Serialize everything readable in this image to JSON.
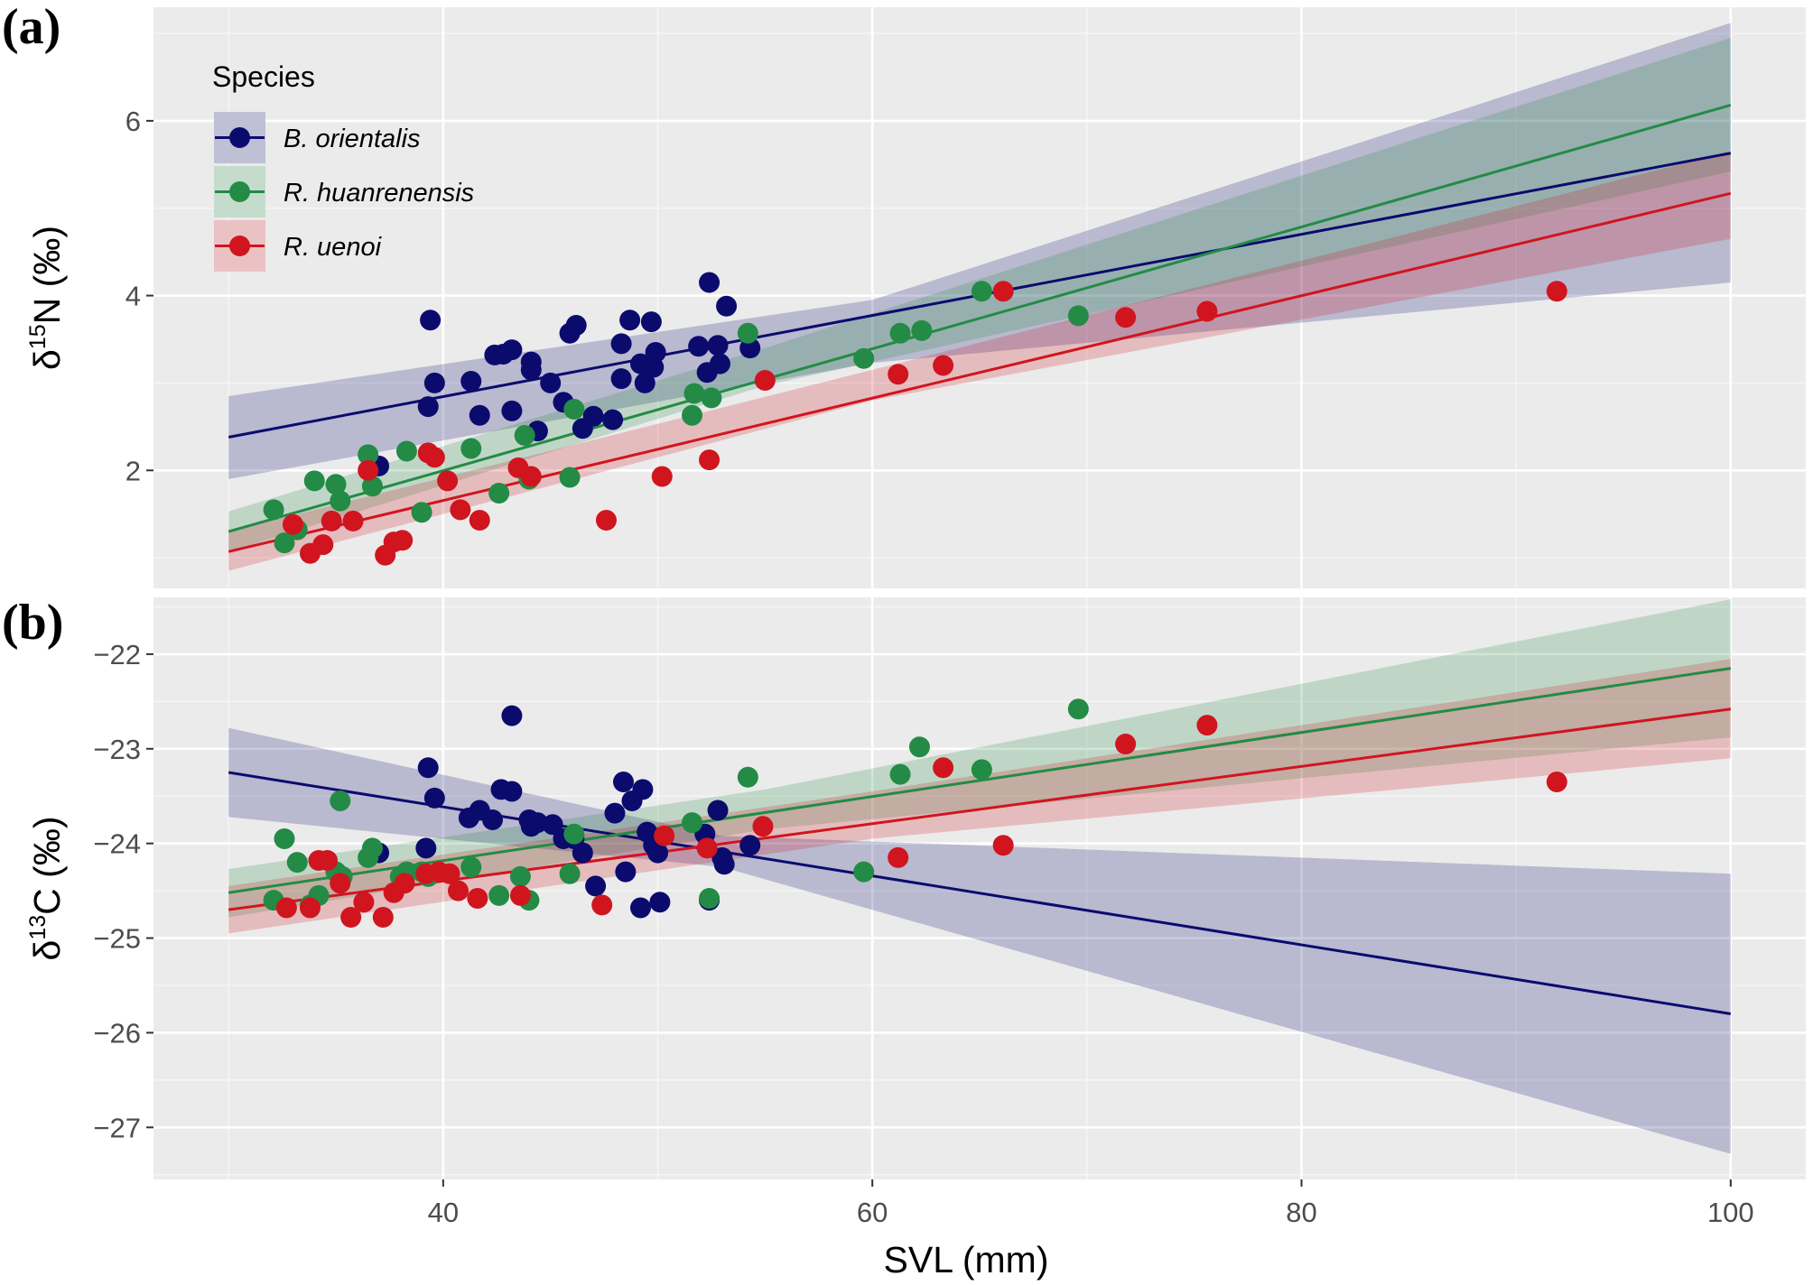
{
  "chart_data": {
    "type": "scatter",
    "legend": {
      "title": "Species",
      "position": "top-left",
      "items": [
        {
          "label": "B. orientalis",
          "color": "#0b0b6e"
        },
        {
          "label": "R. huanrenensis",
          "color": "#238b45"
        },
        {
          "label": "R. uenoi",
          "color": "#d0151f"
        }
      ]
    },
    "x_axis": {
      "label": "SVL (mm)",
      "range": [
        26.5,
        103.5
      ],
      "ticks": [
        40,
        60,
        80,
        100
      ],
      "tick_labels": [
        "40",
        "60",
        "80",
        "100"
      ]
    },
    "panels": [
      {
        "letter": "(a)",
        "ylabel_prefix": "δ",
        "ylabel_sup": "15",
        "ylabel_suffix": "N (‰)",
        "y_range": [
          0.65,
          7.3
        ],
        "ticks": [
          2,
          4,
          6
        ],
        "tick_labels": [
          "2",
          "4",
          "6"
        ],
        "series": [
          {
            "name": "B. orientalis",
            "fit": {
              "x": [
                30,
                100
              ],
              "y": [
                2.38,
                5.63
              ]
            },
            "ci": {
              "x": [
                30,
                60,
                100
              ],
              "lower": [
                1.9,
                3.23,
                4.15
              ],
              "upper": [
                2.85,
                3.95,
                7.12
              ]
            },
            "points": [
              [
                37,
                2.05
              ],
              [
                39.3,
                2.73
              ],
              [
                39.4,
                3.72
              ],
              [
                39.6,
                3.0
              ],
              [
                41.3,
                3.02
              ],
              [
                41.7,
                2.63
              ],
              [
                42.4,
                3.32
              ],
              [
                42.8,
                3.33
              ],
              [
                43.2,
                3.38
              ],
              [
                43.2,
                2.68
              ],
              [
                44.1,
                3.24
              ],
              [
                44.1,
                3.15
              ],
              [
                44.4,
                2.45
              ],
              [
                45,
                3.0
              ],
              [
                45.6,
                2.78
              ],
              [
                45.9,
                3.57
              ],
              [
                46.2,
                3.66
              ],
              [
                46.5,
                2.48
              ],
              [
                47,
                2.62
              ],
              [
                47.9,
                2.58
              ],
              [
                48.3,
                3.05
              ],
              [
                48.3,
                3.45
              ],
              [
                48.7,
                3.72
              ],
              [
                49.2,
                3.22
              ],
              [
                49.4,
                3.0
              ],
              [
                49.7,
                3.7
              ],
              [
                49.8,
                3.18
              ],
              [
                49.9,
                3.35
              ],
              [
                51.9,
                3.42
              ],
              [
                52.3,
                3.12
              ],
              [
                52.4,
                4.15
              ],
              [
                52.8,
                3.43
              ],
              [
                52.9,
                3.22
              ],
              [
                53.2,
                3.88
              ],
              [
                54.3,
                3.4
              ]
            ]
          },
          {
            "name": "R. huanrenensis",
            "fit": {
              "x": [
                30,
                100
              ],
              "y": [
                1.3,
                6.18
              ]
            },
            "ci": {
              "x": [
                30,
                55,
                100
              ],
              "lower": [
                1.07,
                2.97,
                5.42
              ],
              "upper": [
                1.53,
                3.4,
                6.95
              ]
            },
            "points": [
              [
                32.1,
                1.55
              ],
              [
                32.6,
                1.17
              ],
              [
                33.2,
                1.32
              ],
              [
                34,
                1.88
              ],
              [
                35,
                1.84
              ],
              [
                35.2,
                1.65
              ],
              [
                36.5,
                2.18
              ],
              [
                36.7,
                1.82
              ],
              [
                38.3,
                2.22
              ],
              [
                39,
                1.52
              ],
              [
                41.3,
                2.25
              ],
              [
                42.6,
                1.74
              ],
              [
                43.8,
                2.4
              ],
              [
                44,
                1.9
              ],
              [
                45.9,
                1.92
              ],
              [
                46.1,
                2.7
              ],
              [
                51.6,
                2.63
              ],
              [
                51.7,
                2.88
              ],
              [
                52.5,
                2.83
              ],
              [
                54.2,
                3.57
              ],
              [
                59.6,
                3.28
              ],
              [
                61.3,
                3.57
              ],
              [
                62.3,
                3.6
              ],
              [
                65.1,
                4.05
              ],
              [
                69.6,
                3.77
              ]
            ]
          },
          {
            "name": "R. uenoi",
            "fit": {
              "x": [
                30,
                100
              ],
              "y": [
                1.07,
                5.17
              ]
            },
            "ci": {
              "x": [
                30,
                60,
                100
              ],
              "lower": [
                0.85,
                2.8,
                4.65
              ],
              "upper": [
                1.3,
                3.15,
                5.65
              ]
            },
            "points": [
              [
                33,
                1.38
              ],
              [
                33.8,
                1.05
              ],
              [
                34.4,
                1.15
              ],
              [
                34.8,
                1.42
              ],
              [
                35.8,
                1.42
              ],
              [
                36.5,
                2.0
              ],
              [
                37.3,
                1.03
              ],
              [
                37.7,
                1.18
              ],
              [
                38.1,
                1.2
              ],
              [
                39.3,
                2.2
              ],
              [
                39.6,
                2.15
              ],
              [
                40.2,
                1.88
              ],
              [
                40.8,
                1.55
              ],
              [
                41.7,
                1.43
              ],
              [
                43.5,
                2.03
              ],
              [
                44.1,
                1.93
              ],
              [
                47.6,
                1.43
              ],
              [
                50.2,
                1.93
              ],
              [
                52.4,
                2.12
              ],
              [
                55,
                3.03
              ],
              [
                61.2,
                3.1
              ],
              [
                63.3,
                3.2
              ],
              [
                66.1,
                4.05
              ],
              [
                71.8,
                3.75
              ],
              [
                75.6,
                3.82
              ],
              [
                91.9,
                4.05
              ]
            ]
          }
        ]
      },
      {
        "letter": "(b)",
        "ylabel_prefix": "δ",
        "ylabel_sup": "13",
        "ylabel_suffix": "C (‰)",
        "y_range": [
          -27.55,
          -21.4
        ],
        "ticks": [
          -22,
          -23,
          -24,
          -25,
          -26,
          -27
        ],
        "tick_labels": [
          "−22",
          "−23",
          "−24",
          "−25",
          "−26",
          "−27"
        ],
        "series": [
          {
            "name": "B. orientalis",
            "fit": {
              "x": [
                30,
                100
              ],
              "y": [
                -23.25,
                -25.8
              ]
            },
            "ci": {
              "x": [
                30,
                53,
                100
              ],
              "lower": [
                -23.72,
                -24.25,
                -27.28
              ],
              "upper": [
                -22.78,
                -23.92,
                -24.32
              ]
            },
            "points": [
              [
                37,
                -24.1
              ],
              [
                39.2,
                -24.05
              ],
              [
                39.3,
                -23.2
              ],
              [
                39.6,
                -23.52
              ],
              [
                41.2,
                -23.73
              ],
              [
                41.7,
                -23.65
              ],
              [
                42.3,
                -23.75
              ],
              [
                42.7,
                -23.43
              ],
              [
                43.2,
                -23.45
              ],
              [
                43.2,
                -22.65
              ],
              [
                44,
                -23.75
              ],
              [
                44.1,
                -23.82
              ],
              [
                44.4,
                -23.78
              ],
              [
                45.1,
                -23.8
              ],
              [
                45.6,
                -23.95
              ],
              [
                46.1,
                -23.95
              ],
              [
                46.5,
                -24.1
              ],
              [
                47.1,
                -24.45
              ],
              [
                48,
                -23.68
              ],
              [
                48.4,
                -23.35
              ],
              [
                48.5,
                -24.3
              ],
              [
                48.8,
                -23.55
              ],
              [
                49.2,
                -24.68
              ],
              [
                49.3,
                -23.43
              ],
              [
                49.5,
                -23.88
              ],
              [
                49.8,
                -24.02
              ],
              [
                50,
                -24.1
              ],
              [
                50.1,
                -24.62
              ],
              [
                52.2,
                -23.9
              ],
              [
                52.4,
                -24.6
              ],
              [
                52.8,
                -23.65
              ],
              [
                53,
                -24.15
              ],
              [
                53.1,
                -24.22
              ],
              [
                54.3,
                -24.02
              ]
            ]
          },
          {
            "name": "R. huanrenensis",
            "fit": {
              "x": [
                30,
                100
              ],
              "y": [
                -24.52,
                -22.15
              ]
            },
            "ci": {
              "x": [
                30,
                55,
                100
              ],
              "lower": [
                -24.78,
                -23.85,
                -22.88
              ],
              "upper": [
                -24.27,
                -23.43,
                -21.42
              ]
            },
            "points": [
              [
                32.1,
                -24.6
              ],
              [
                32.6,
                -23.95
              ],
              [
                33.2,
                -24.2
              ],
              [
                33.8,
                -24.65
              ],
              [
                34.2,
                -24.55
              ],
              [
                35,
                -24.3
              ],
              [
                35.2,
                -23.55
              ],
              [
                35.3,
                -24.35
              ],
              [
                36.5,
                -24.15
              ],
              [
                36.7,
                -24.05
              ],
              [
                38,
                -24.35
              ],
              [
                38.3,
                -24.3
              ],
              [
                39,
                -24.3
              ],
              [
                39.3,
                -24.35
              ],
              [
                41.3,
                -24.25
              ],
              [
                42.6,
                -24.55
              ],
              [
                43.6,
                -24.35
              ],
              [
                44,
                -24.6
              ],
              [
                45.9,
                -24.32
              ],
              [
                46.1,
                -23.9
              ],
              [
                51.6,
                -23.78
              ],
              [
                52.4,
                -24.58
              ],
              [
                54.2,
                -23.3
              ],
              [
                59.6,
                -24.3
              ],
              [
                61.3,
                -23.27
              ],
              [
                62.2,
                -22.98
              ],
              [
                65.1,
                -23.22
              ],
              [
                69.6,
                -22.58
              ]
            ]
          },
          {
            "name": "R. uenoi",
            "fit": {
              "x": [
                30,
                100
              ],
              "y": [
                -24.7,
                -22.58
              ]
            },
            "ci": {
              "x": [
                30,
                60,
                100
              ],
              "lower": [
                -24.95,
                -23.95,
                -23.1
              ],
              "upper": [
                -24.45,
                -23.45,
                -22.05
              ]
            },
            "points": [
              [
                32.7,
                -24.68
              ],
              [
                33.8,
                -24.68
              ],
              [
                34.2,
                -24.18
              ],
              [
                34.6,
                -24.18
              ],
              [
                35.2,
                -24.42
              ],
              [
                35.7,
                -24.78
              ],
              [
                36.3,
                -24.62
              ],
              [
                37.2,
                -24.78
              ],
              [
                37.7,
                -24.52
              ],
              [
                38.2,
                -24.42
              ],
              [
                39.2,
                -24.32
              ],
              [
                39.8,
                -24.3
              ],
              [
                40.3,
                -24.32
              ],
              [
                40.7,
                -24.5
              ],
              [
                41.6,
                -24.58
              ],
              [
                43.6,
                -24.55
              ],
              [
                47.4,
                -24.65
              ],
              [
                50.3,
                -23.92
              ],
              [
                52.3,
                -24.05
              ],
              [
                54.9,
                -23.82
              ],
              [
                61.2,
                -24.15
              ],
              [
                63.3,
                -23.2
              ],
              [
                66.1,
                -24.02
              ],
              [
                71.8,
                -22.95
              ],
              [
                75.6,
                -22.75
              ],
              [
                91.9,
                -23.35
              ]
            ]
          }
        ]
      }
    ]
  }
}
